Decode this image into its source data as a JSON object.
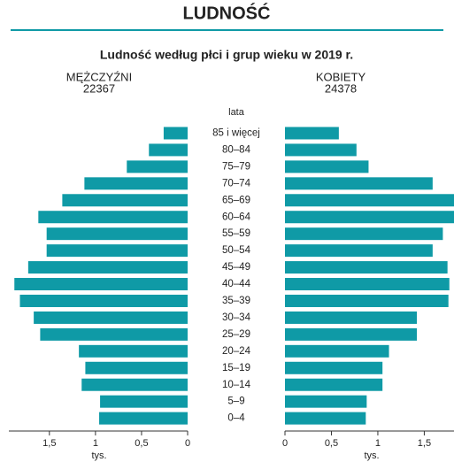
{
  "chart_data": {
    "type": "pyramid",
    "title": "LUDNOŚĆ",
    "subtitle": "Ludność według płci i grup wieku w 2019 r.",
    "y_label": "lata",
    "x_label": "tys.",
    "categories": [
      "85 i więcej",
      "80–84",
      "75–79",
      "70–74",
      "65–69",
      "60–64",
      "55–59",
      "50–54",
      "45–49",
      "40–44",
      "35–39",
      "30–34",
      "25–29",
      "20–24",
      "15–19",
      "10–14",
      "5–9",
      "0–4"
    ],
    "series": [
      {
        "name": "MĘŻCZYŹNI",
        "total": 22367,
        "color": "#0f9aa6",
        "side": "left",
        "values": [
          0.26,
          0.42,
          0.66,
          1.12,
          1.36,
          1.62,
          1.53,
          1.53,
          1.73,
          1.88,
          1.82,
          1.67,
          1.6,
          1.18,
          1.11,
          1.15,
          0.95,
          0.96
        ]
      },
      {
        "name": "KOBIETY",
        "total": 24378,
        "color": "#0f9aa6",
        "side": "right",
        "values": [
          0.58,
          0.77,
          0.9,
          1.59,
          1.82,
          1.82,
          1.7,
          1.59,
          1.75,
          1.77,
          1.76,
          1.42,
          1.42,
          1.12,
          1.05,
          1.05,
          0.88,
          0.87
        ]
      }
    ],
    "xlim_left": [
      0,
      1.94
    ],
    "xticks_left": [
      0,
      {
        "value": 0.5,
        "label": "0,5"
      },
      1,
      {
        "value": 1.5,
        "label": "1,5"
      }
    ],
    "xlim_right": [
      0,
      1.82
    ],
    "xticks_right": [
      0,
      {
        "value": 0.5,
        "label": "0,5"
      },
      1,
      {
        "value": 1.5,
        "label": "1,5"
      }
    ]
  }
}
